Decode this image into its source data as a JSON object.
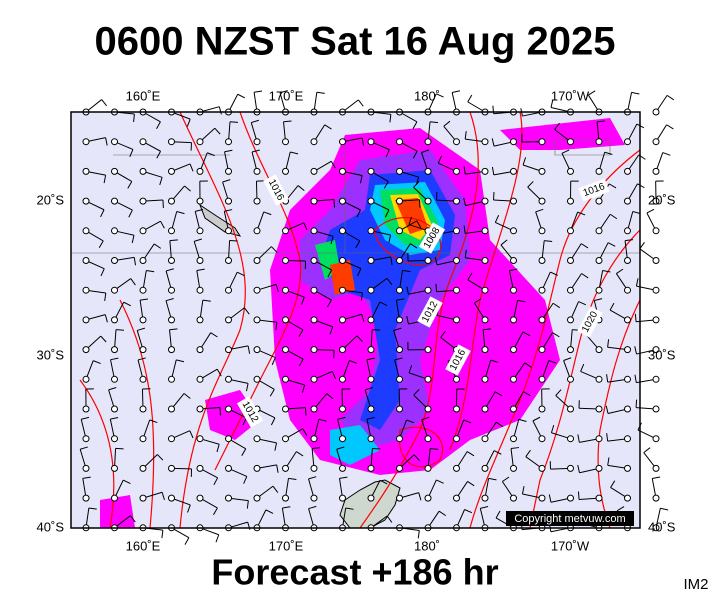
{
  "header": {
    "title": "0600 NZST Sat 16 Aug 2025"
  },
  "map": {
    "lon_labels": [
      "160˚E",
      "170˚E",
      "180˚",
      "170˚W"
    ],
    "lat_labels": [
      "20˚S",
      "30˚S",
      "40˚S"
    ],
    "isobar_labels": [
      "1016",
      "1008",
      "1012",
      "1016",
      "1016",
      "1020",
      "1012"
    ],
    "copyright": "Copyright metvuw.com"
  },
  "footer": {
    "forecast": "Forecast +186 hr",
    "id": "IM2"
  }
}
